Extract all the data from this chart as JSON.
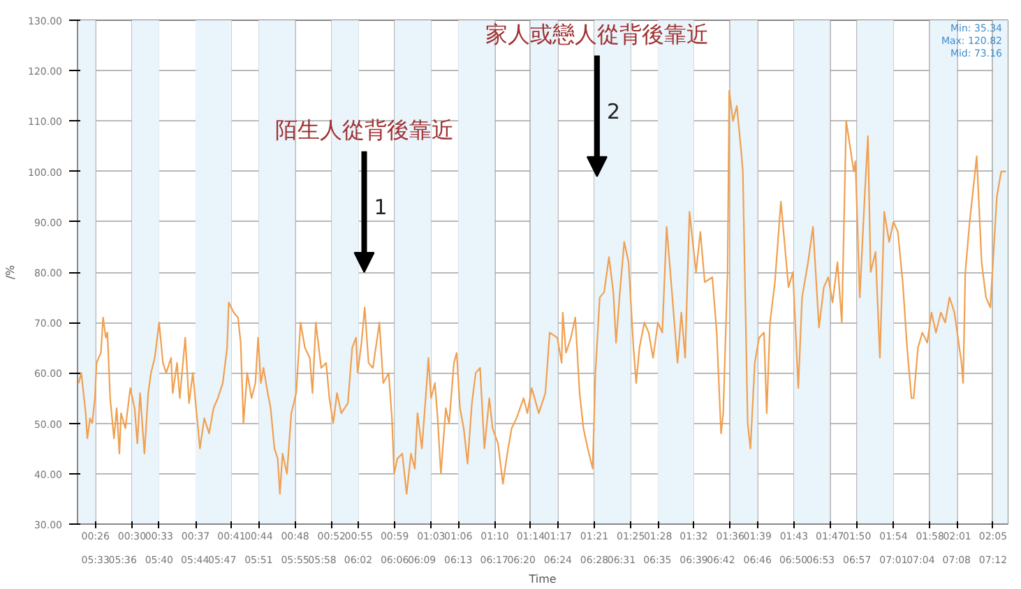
{
  "chart_data": {
    "type": "line",
    "xlabel": "Time",
    "ylabel": "/%",
    "xlim": [
      0.4,
      2.11
    ],
    "ylim": [
      30,
      130
    ],
    "x2lim": [
      5.517,
      7.227
    ],
    "xticks": [
      {
        "value": 0.433,
        "label": "00:26"
      },
      {
        "value": 0.5,
        "label": "00:30"
      },
      {
        "value": 0.55,
        "label": "00:33"
      },
      {
        "value": 0.617,
        "label": "00:37"
      },
      {
        "value": 0.683,
        "label": "00:41"
      },
      {
        "value": 0.733,
        "label": "00:44"
      },
      {
        "value": 0.8,
        "label": "00:48"
      },
      {
        "value": 0.867,
        "label": "00:52"
      },
      {
        "value": 0.917,
        "label": "00:55"
      },
      {
        "value": 0.983,
        "label": "00:59"
      },
      {
        "value": 1.05,
        "label": "01:03"
      },
      {
        "value": 1.1,
        "label": "01:06"
      },
      {
        "value": 1.167,
        "label": "01:10"
      },
      {
        "value": 1.233,
        "label": "01:14"
      },
      {
        "value": 1.283,
        "label": "01:17"
      },
      {
        "value": 1.35,
        "label": "01:21"
      },
      {
        "value": 1.417,
        "label": "01:25"
      },
      {
        "value": 1.467,
        "label": "01:28"
      },
      {
        "value": 1.533,
        "label": "01:32"
      },
      {
        "value": 1.6,
        "label": "01:36"
      },
      {
        "value": 1.65,
        "label": "01:39"
      },
      {
        "value": 1.717,
        "label": "01:43"
      },
      {
        "value": 1.783,
        "label": "01:47"
      },
      {
        "value": 1.833,
        "label": "01:50"
      },
      {
        "value": 1.9,
        "label": "01:54"
      },
      {
        "value": 1.967,
        "label": "01:58"
      },
      {
        "value": 2.017,
        "label": "02:01"
      },
      {
        "value": 2.083,
        "label": "02:05"
      }
    ],
    "x2ticks": [
      {
        "value": 5.55,
        "label": "05:33"
      },
      {
        "value": 5.6,
        "label": "05:36"
      },
      {
        "value": 5.667,
        "label": "05:40"
      },
      {
        "value": 5.733,
        "label": "05:44"
      },
      {
        "value": 5.783,
        "label": "05:47"
      },
      {
        "value": 5.85,
        "label": "05:51"
      },
      {
        "value": 5.917,
        "label": "05:55"
      },
      {
        "value": 5.967,
        "label": "05:58"
      },
      {
        "value": 6.033,
        "label": "06:02"
      },
      {
        "value": 6.1,
        "label": "06:06"
      },
      {
        "value": 6.15,
        "label": "06:09"
      },
      {
        "value": 6.217,
        "label": "06:13"
      },
      {
        "value": 6.283,
        "label": "06:17"
      },
      {
        "value": 6.333,
        "label": "06:20"
      },
      {
        "value": 6.4,
        "label": "06:24"
      },
      {
        "value": 6.467,
        "label": "06:28"
      },
      {
        "value": 6.517,
        "label": "06:31"
      },
      {
        "value": 6.583,
        "label": "06:35"
      },
      {
        "value": 6.65,
        "label": "06:39"
      },
      {
        "value": 6.7,
        "label": "06:42"
      },
      {
        "value": 6.767,
        "label": "06:46"
      },
      {
        "value": 6.833,
        "label": "06:50"
      },
      {
        "value": 6.883,
        "label": "06:53"
      },
      {
        "value": 6.95,
        "label": "06:57"
      },
      {
        "value": 7.017,
        "label": "07:01"
      },
      {
        "value": 7.067,
        "label": "07:04"
      },
      {
        "value": 7.133,
        "label": "07:08"
      },
      {
        "value": 7.2,
        "label": "07:12"
      }
    ],
    "yticks": [
      {
        "value": 30,
        "label": "30.00"
      },
      {
        "value": 40,
        "label": "40.00"
      },
      {
        "value": 50,
        "label": "50.00"
      },
      {
        "value": 60,
        "label": "60.00"
      },
      {
        "value": 70,
        "label": "70.00"
      },
      {
        "value": 80,
        "label": "80.00"
      },
      {
        "value": 90,
        "label": "90.00"
      },
      {
        "value": 100,
        "label": "100.00"
      },
      {
        "value": 110,
        "label": "110.00"
      },
      {
        "value": 120,
        "label": "120.00"
      },
      {
        "value": 130,
        "label": "130.00"
      }
    ],
    "grid": true,
    "series": [
      {
        "color": "#f0a050",
        "x": [
          0.402,
          0.407,
          0.415,
          0.418,
          0.423,
          0.427,
          0.432,
          0.435,
          0.443,
          0.447,
          0.452,
          0.455,
          0.46,
          0.467,
          0.472,
          0.477,
          0.48,
          0.488,
          0.497,
          0.505,
          0.51,
          0.515,
          0.523,
          0.53,
          0.535,
          0.542,
          0.55,
          0.557,
          0.563,
          0.572,
          0.575,
          0.583,
          0.588,
          0.598,
          0.605,
          0.612,
          0.618,
          0.625,
          0.633,
          0.642,
          0.65,
          0.658,
          0.667,
          0.675,
          0.678,
          0.687,
          0.695,
          0.7,
          0.705,
          0.712,
          0.72,
          0.727,
          0.732,
          0.737,
          0.742,
          0.748,
          0.755,
          0.762,
          0.768,
          0.772,
          0.777,
          0.785,
          0.793,
          0.802,
          0.81,
          0.818,
          0.827,
          0.832,
          0.838,
          0.848,
          0.857,
          0.863,
          0.87,
          0.877,
          0.885,
          0.897,
          0.905,
          0.912,
          0.915,
          0.922,
          0.928,
          0.935,
          0.943,
          0.947,
          0.955,
          0.962,
          0.972,
          0.978,
          0.982,
          0.988,
          0.997,
          1.005,
          1.013,
          1.02,
          1.025,
          1.033,
          1.042,
          1.045,
          1.05,
          1.057,
          1.062,
          1.068,
          1.077,
          1.083,
          1.092,
          1.097,
          1.103,
          1.11,
          1.117,
          1.125,
          1.132,
          1.14,
          1.148,
          1.157,
          1.163,
          1.173,
          1.182,
          1.19,
          1.198,
          1.207,
          1.22,
          1.227,
          1.235,
          1.248,
          1.26,
          1.268,
          1.282,
          1.29,
          1.292,
          1.298,
          1.307,
          1.315,
          1.323,
          1.33,
          1.338,
          1.347,
          1.352,
          1.36,
          1.368,
          1.377,
          1.385,
          1.39,
          1.397,
          1.405,
          1.413,
          1.422,
          1.427,
          1.433,
          1.442,
          1.45,
          1.458,
          1.467,
          1.475,
          1.483,
          1.492,
          1.503,
          1.51,
          1.517,
          1.525,
          1.537,
          1.545,
          1.553,
          1.567,
          1.575,
          1.583,
          1.587,
          1.595,
          1.598,
          1.605,
          1.612,
          1.62,
          1.623,
          1.632,
          1.637,
          1.645,
          1.653,
          1.662,
          1.667,
          1.673,
          1.682,
          1.693,
          1.707,
          1.715,
          1.725,
          1.732,
          1.743,
          1.752,
          1.763,
          1.772,
          1.78,
          1.788,
          1.797,
          1.805,
          1.813,
          1.827,
          1.83,
          1.838,
          1.847,
          1.853,
          1.858,
          1.867,
          1.875,
          1.883,
          1.892,
          1.9,
          1.908,
          1.917,
          1.925,
          1.933,
          1.937,
          1.945,
          1.953,
          1.962,
          1.97,
          1.978,
          1.987,
          1.995,
          2.003,
          2.012,
          2.025,
          2.028,
          2.032,
          2.04,
          2.053,
          2.062,
          2.07,
          2.078,
          2.09,
          2.098,
          2.107
        ],
        "values": [
          58,
          60,
          52,
          47,
          51,
          50,
          55,
          62,
          64,
          71,
          67,
          68,
          55,
          47,
          53,
          44,
          52,
          49,
          57,
          53,
          46,
          56,
          44,
          56,
          60,
          63,
          70,
          62,
          60,
          63,
          56,
          62,
          55,
          67,
          54,
          60,
          53,
          45,
          51,
          48,
          53,
          55,
          58,
          65,
          74,
          72,
          71,
          66,
          50,
          60,
          55,
          58,
          67,
          58,
          61,
          57,
          53,
          45,
          43,
          36,
          44,
          40,
          52,
          56,
          70,
          65,
          63,
          56,
          70,
          61,
          62,
          55,
          50,
          56,
          52,
          54,
          65,
          67,
          60,
          66,
          73,
          62,
          61,
          64,
          70,
          58,
          60,
          51,
          40,
          43,
          44,
          36,
          44,
          41,
          52,
          45,
          58,
          63,
          55,
          58,
          51,
          40,
          53,
          50,
          62,
          64,
          53,
          49,
          42,
          54,
          60,
          61,
          45,
          55,
          49,
          46,
          38,
          44,
          49,
          51,
          55,
          52,
          57,
          52,
          56,
          68,
          67,
          62,
          72,
          64,
          67,
          71,
          56,
          49,
          45,
          41,
          60,
          75,
          76,
          83,
          76,
          66,
          76,
          86,
          82,
          65,
          58,
          65,
          70,
          68,
          63,
          70,
          68,
          89,
          77,
          62,
          72,
          63,
          92,
          80,
          88,
          78,
          79,
          68,
          48,
          52,
          80,
          116,
          110,
          113,
          104,
          100,
          50,
          45,
          62,
          67,
          68,
          52,
          70,
          78,
          94,
          77,
          80,
          57,
          75,
          82,
          89,
          69,
          77,
          79,
          74,
          82,
          70,
          110,
          100,
          102,
          75,
          95,
          107,
          80,
          84,
          63,
          92,
          86,
          90,
          88,
          78,
          65,
          55,
          55,
          65,
          68,
          66,
          72,
          68,
          72,
          70,
          75,
          72,
          62,
          58,
          80,
          90,
          103,
          82,
          75,
          73,
          95,
          100,
          100
        ]
      }
    ],
    "bands": [
      {
        "axis": "x",
        "from": 0.4,
        "to": 0.433,
        "color": "#eaf4fb"
      },
      {
        "axis": "x",
        "from": 0.5,
        "to": 0.55,
        "color": "#eaf4fb"
      },
      {
        "axis": "x",
        "from": 0.617,
        "to": 0.683,
        "color": "#eaf4fb"
      },
      {
        "axis": "x",
        "from": 0.733,
        "to": 0.8,
        "color": "#eaf4fb"
      },
      {
        "axis": "x",
        "from": 0.867,
        "to": 0.917,
        "color": "#eaf4fb"
      },
      {
        "axis": "x",
        "from": 0.983,
        "to": 1.05,
        "color": "#eaf4fb"
      },
      {
        "axis": "x",
        "from": 1.1,
        "to": 1.167,
        "color": "#eaf4fb"
      },
      {
        "axis": "x",
        "from": 1.233,
        "to": 1.283,
        "color": "#eaf4fb"
      },
      {
        "axis": "x",
        "from": 1.35,
        "to": 1.417,
        "color": "#eaf4fb"
      },
      {
        "axis": "x",
        "from": 1.467,
        "to": 1.533,
        "color": "#eaf4fb"
      },
      {
        "axis": "x",
        "from": 1.6,
        "to": 1.65,
        "color": "#eaf4fb"
      },
      {
        "axis": "x",
        "from": 1.717,
        "to": 1.783,
        "color": "#eaf4fb"
      },
      {
        "axis": "x",
        "from": 1.833,
        "to": 1.9,
        "color": "#eaf4fb"
      },
      {
        "axis": "x",
        "from": 1.967,
        "to": 2.017,
        "color": "#eaf4fb"
      },
      {
        "axis": "x",
        "from": 2.083,
        "to": 2.11,
        "color": "#eaf4fb"
      }
    ],
    "annotations": [
      "陌生人從背後靠近",
      {
        "text": "1",
        "x": 0.927,
        "y": 80
      },
      "家人或戀人從背後靠近",
      {
        "text": "2",
        "x": 1.355,
        "y": 99
      },
      "Min: 35.34",
      "Max: 120.82",
      "Mid: 73.16"
    ]
  }
}
